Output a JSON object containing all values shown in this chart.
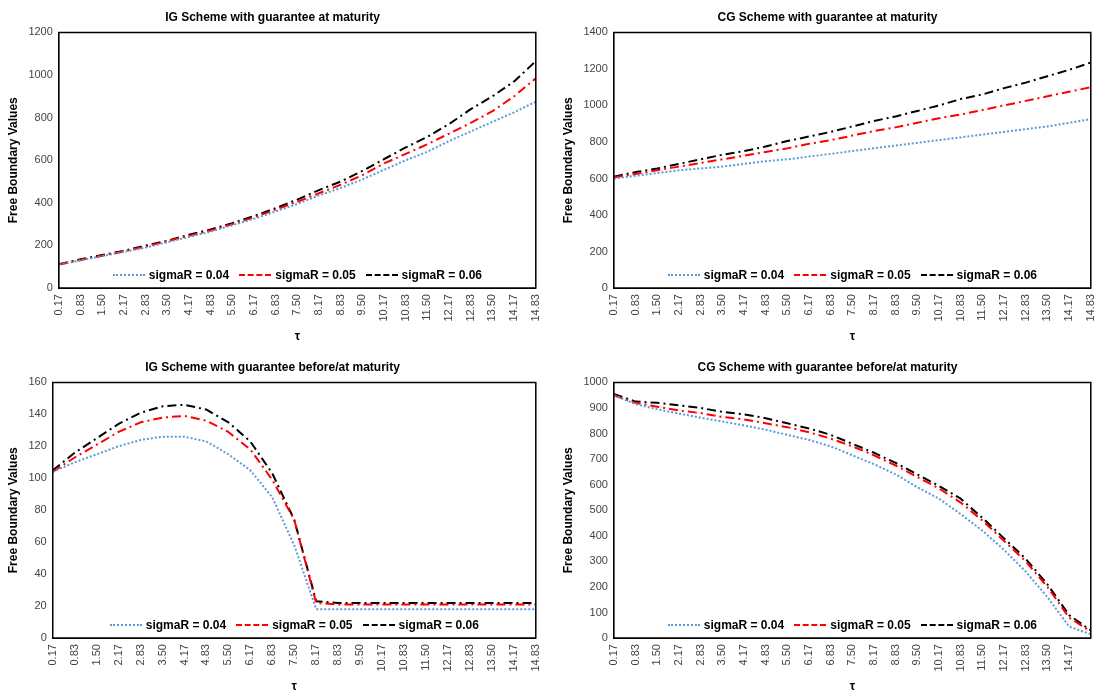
{
  "chart_data": [
    {
      "type": "line",
      "title": "IG Scheme with guarantee at maturity",
      "xlabel": "τ",
      "ylabel": "Free Boundary Values",
      "categories": [
        "0.17",
        "0.83",
        "1.50",
        "2.17",
        "2.83",
        "3.50",
        "4.17",
        "4.83",
        "5.50",
        "6.17",
        "6.83",
        "7.50",
        "8.17",
        "8.83",
        "9.50",
        "10.17",
        "10.83",
        "11.50",
        "12.17",
        "12.83",
        "13.50",
        "14.17",
        "14.83"
      ],
      "ylim": [
        0,
        1200
      ],
      "yticks": [
        0,
        200,
        400,
        600,
        800,
        1000,
        1200
      ],
      "grid": false,
      "legend": "bottom",
      "marker": "none",
      "series": [
        {
          "name": "sigmaR = 0.04",
          "color": "#5b9bd5",
          "line_style": "dotted",
          "values": [
            110,
            130,
            150,
            170,
            190,
            215,
            240,
            265,
            295,
            325,
            360,
            395,
            435,
            470,
            510,
            555,
            600,
            640,
            690,
            735,
            780,
            825,
            875
          ]
        },
        {
          "name": "sigmaR = 0.05",
          "color": "#ff0000",
          "line_style": "dashed",
          "values": [
            110,
            132,
            152,
            172,
            195,
            220,
            245,
            270,
            300,
            332,
            368,
            405,
            445,
            485,
            530,
            585,
            630,
            675,
            725,
            775,
            830,
            900,
            985
          ]
        },
        {
          "name": "sigmaR = 0.06",
          "color": "#000000",
          "line_style": "dashed",
          "values": [
            112,
            135,
            155,
            175,
            200,
            222,
            250,
            275,
            305,
            338,
            375,
            415,
            460,
            500,
            550,
            605,
            660,
            710,
            770,
            840,
            900,
            970,
            1065
          ]
        }
      ]
    },
    {
      "type": "line",
      "title": "CG Scheme with guarantee at maturity",
      "xlabel": "τ",
      "ylabel": "Free Boundary Values",
      "categories": [
        "0.17",
        "0.83",
        "1.50",
        "2.17",
        "2.83",
        "3.50",
        "4.17",
        "4.83",
        "5.50",
        "6.17",
        "6.83",
        "7.50",
        "8.17",
        "8.83",
        "9.50",
        "10.17",
        "10.83",
        "11.50",
        "12.17",
        "12.83",
        "13.50",
        "14.17",
        "14.83"
      ],
      "ylim": [
        0,
        1400
      ],
      "yticks": [
        0,
        200,
        400,
        600,
        800,
        1000,
        1200,
        1400
      ],
      "grid": false,
      "legend": "bottom",
      "marker": "none",
      "series": [
        {
          "name": "sigmaR = 0.04",
          "color": "#5b9bd5",
          "line_style": "dotted",
          "values": [
            600,
            615,
            630,
            645,
            655,
            665,
            680,
            695,
            705,
            720,
            735,
            750,
            765,
            780,
            795,
            810,
            825,
            840,
            855,
            870,
            885,
            905,
            925
          ]
        },
        {
          "name": "sigmaR = 0.05",
          "color": "#ff0000",
          "line_style": "dashed",
          "values": [
            605,
            625,
            645,
            665,
            685,
            705,
            725,
            745,
            765,
            790,
            810,
            835,
            860,
            880,
            905,
            930,
            950,
            975,
            1000,
            1025,
            1050,
            1075,
            1100
          ]
        },
        {
          "name": "sigmaR = 0.06",
          "color": "#000000",
          "line_style": "dashed",
          "values": [
            610,
            635,
            655,
            680,
            705,
            730,
            750,
            775,
            805,
            830,
            855,
            885,
            915,
            940,
            970,
            1000,
            1035,
            1060,
            1095,
            1125,
            1160,
            1195,
            1235
          ]
        }
      ]
    },
    {
      "type": "line",
      "title": "IG Scheme with guarantee before/at maturity",
      "xlabel": "τ",
      "ylabel": "Free Boundary Values",
      "categories": [
        "0.17",
        "0.83",
        "1.50",
        "2.17",
        "2.83",
        "3.50",
        "4.17",
        "4.83",
        "5.50",
        "6.17",
        "6.83",
        "7.50",
        "8.17",
        "8.83",
        "9.50",
        "10.17",
        "10.83",
        "11.50",
        "12.17",
        "12.83",
        "13.50",
        "14.17",
        "14.83"
      ],
      "ylim": [
        0,
        160
      ],
      "yticks": [
        0,
        20,
        40,
        60,
        80,
        100,
        120,
        140,
        160
      ],
      "grid": false,
      "legend": "bottom",
      "marker": "none",
      "series": [
        {
          "name": "sigmaR = 0.04",
          "color": "#5b9bd5",
          "line_style": "dotted",
          "values": [
            104,
            110,
            115,
            120,
            124,
            126,
            126,
            123,
            115,
            105,
            88,
            58,
            18,
            18,
            18,
            18,
            18,
            18,
            18,
            18,
            18,
            18,
            18
          ]
        },
        {
          "name": "sigmaR = 0.05",
          "color": "#ff0000",
          "line_style": "dashed",
          "values": [
            104,
            113,
            121,
            129,
            135,
            138,
            139,
            136,
            129,
            118,
            99,
            74,
            22,
            21,
            21,
            21,
            21,
            21,
            21,
            21,
            21,
            21,
            21
          ]
        },
        {
          "name": "sigmaR = 0.06",
          "color": "#000000",
          "line_style": "dashed",
          "values": [
            105,
            116,
            125,
            134,
            141,
            145,
            146,
            143,
            135,
            123,
            103,
            74,
            23,
            22,
            22,
            22,
            22,
            22,
            22,
            22,
            22,
            22,
            22
          ]
        }
      ]
    },
    {
      "type": "line",
      "title": "CG Scheme with guarantee before/at maturity",
      "xlabel": "τ",
      "ylabel": "Free Boundary Values",
      "categories": [
        "0.17",
        "0.83",
        "1.50",
        "2.17",
        "2.83",
        "3.50",
        "4.17",
        "4.83",
        "5.50",
        "6.17",
        "6.83",
        "7.50",
        "8.17",
        "8.83",
        "9.50",
        "10.17",
        "10.83",
        "11.50",
        "12.17",
        "12.83",
        "13.50",
        "14.17",
        null
      ],
      "ylim": [
        0,
        1000
      ],
      "yticks": [
        0,
        100,
        200,
        300,
        400,
        500,
        600,
        700,
        800,
        900,
        1000
      ],
      "grid": false,
      "legend": "bottom",
      "marker": "none",
      "series": [
        {
          "name": "sigmaR = 0.04",
          "color": "#5b9bd5",
          "line_style": "dotted",
          "values": [
            950,
            915,
            895,
            878,
            862,
            847,
            832,
            815,
            795,
            775,
            750,
            715,
            680,
            640,
            590,
            545,
            485,
            420,
            345,
            260,
            160,
            45,
            15
          ]
        },
        {
          "name": "sigmaR = 0.05",
          "color": "#ff0000",
          "line_style": "dashed",
          "values": [
            950,
            920,
            905,
            890,
            880,
            865,
            855,
            840,
            825,
            805,
            780,
            750,
            715,
            675,
            630,
            585,
            530,
            460,
            380,
            300,
            200,
            80,
            25
          ]
        },
        {
          "name": "sigmaR = 0.06",
          "color": "#000000",
          "line_style": "dashed",
          "values": [
            955,
            925,
            920,
            910,
            900,
            885,
            875,
            860,
            840,
            820,
            795,
            760,
            725,
            685,
            640,
            595,
            545,
            470,
            390,
            310,
            210,
            90,
            30
          ]
        }
      ]
    }
  ]
}
